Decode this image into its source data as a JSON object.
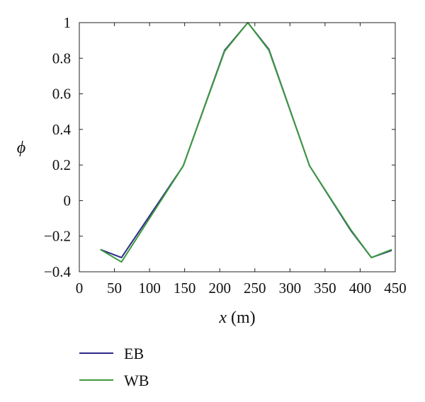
{
  "chart_data": {
    "type": "line",
    "title": "",
    "xlabel_var": "x",
    "xlabel_unit": " (m)",
    "ylabel": "ϕ",
    "xlim": [
      0,
      450
    ],
    "ylim": [
      -0.4,
      1
    ],
    "xticks": [
      0,
      50,
      100,
      150,
      200,
      250,
      300,
      350,
      400,
      450
    ],
    "yticks": [
      -0.4,
      -0.2,
      0,
      0.2,
      0.4,
      0.6,
      0.8,
      1
    ],
    "ytick_labels": [
      "−0.4",
      "−0.2",
      "0",
      "0.2",
      "0.4",
      "0.6",
      "0.8",
      "1"
    ],
    "grid": false,
    "legend_position": "below",
    "series": [
      {
        "name": "EB",
        "color": "#2e2a8c",
        "x": [
          30,
          60,
          148,
          207,
          240,
          270,
          328,
          387,
          416,
          445
        ],
        "y": [
          -0.275,
          -0.32,
          0.195,
          0.845,
          1.0,
          0.85,
          0.195,
          -0.17,
          -0.32,
          -0.28
        ]
      },
      {
        "name": "WB",
        "color": "#3c9a3c",
        "x": [
          30,
          60,
          148,
          207,
          240,
          270,
          328,
          387,
          416,
          445
        ],
        "y": [
          -0.275,
          -0.345,
          0.195,
          0.84,
          1.0,
          0.845,
          0.195,
          -0.165,
          -0.32,
          -0.275
        ]
      }
    ]
  }
}
